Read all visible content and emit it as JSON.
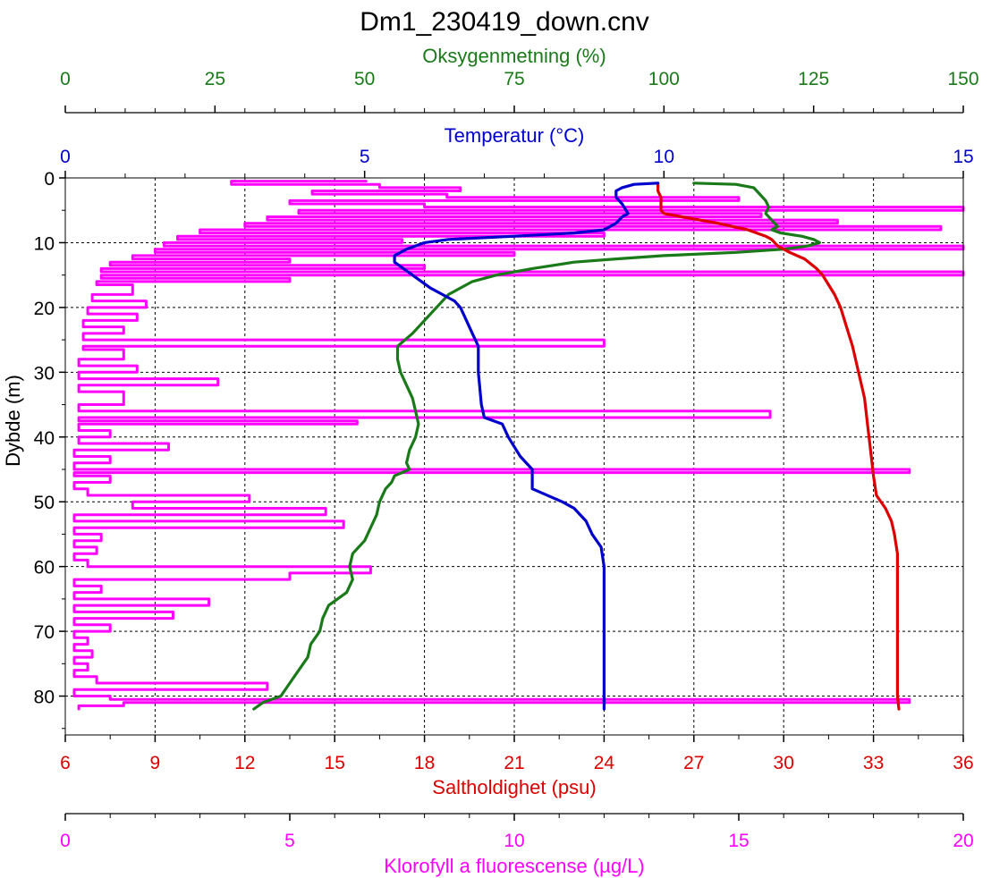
{
  "chart_data": {
    "type": "line",
    "title": "Dm1_230419_down.cnv",
    "y_axis": {
      "label": "Dybde (m)",
      "range": [
        0,
        86
      ],
      "ticks": [
        0,
        10,
        20,
        30,
        40,
        50,
        60,
        70,
        80
      ],
      "inverted": true,
      "color": "#000000"
    },
    "x_axes": [
      {
        "key": "oxygen",
        "label": "Oksygenmetning (%)",
        "position": "top",
        "color": "#1a7a1a",
        "range": [
          0,
          150
        ],
        "ticks": [
          0,
          25,
          50,
          75,
          100,
          125,
          150
        ]
      },
      {
        "key": "temperature",
        "label": "Temperatur (°C)",
        "position": "top",
        "color": "#0000cc",
        "range": [
          0,
          15
        ],
        "ticks": [
          0,
          5,
          10,
          15
        ]
      },
      {
        "key": "salinity",
        "label": "Saltholdighet (psu)",
        "position": "bottom",
        "color": "#dd0000",
        "range": [
          6,
          36
        ],
        "ticks": [
          6,
          9,
          12,
          15,
          18,
          21,
          24,
          27,
          30,
          33,
          36
        ]
      },
      {
        "key": "chlorophyll",
        "label": "Klorofyll a fluorescense (µg/L)",
        "position": "bottom",
        "color": "#ff00ff",
        "range": [
          0,
          20
        ],
        "ticks": [
          0,
          5,
          10,
          15,
          20
        ]
      }
    ],
    "grid": true,
    "series": [
      {
        "axis": "temperature",
        "color": "#0000cc",
        "points": [
          [
            0.8,
            9.9
          ],
          [
            1.0,
            9.5
          ],
          [
            1.5,
            9.3
          ],
          [
            2.0,
            9.2
          ],
          [
            3.0,
            9.2
          ],
          [
            4.0,
            9.3
          ],
          [
            5.5,
            9.4
          ],
          [
            6.0,
            9.3
          ],
          [
            7.0,
            9.2
          ],
          [
            8.0,
            9.0
          ],
          [
            8.5,
            8.5
          ],
          [
            9.0,
            7.5
          ],
          [
            9.5,
            6.4
          ],
          [
            10.0,
            6.0
          ],
          [
            11.0,
            5.7
          ],
          [
            12.0,
            5.5
          ],
          [
            13.0,
            5.5
          ],
          [
            15.0,
            5.8
          ],
          [
            17.0,
            6.1
          ],
          [
            18.0,
            6.3
          ],
          [
            19.0,
            6.5
          ],
          [
            20.0,
            6.6
          ],
          [
            22.0,
            6.7
          ],
          [
            24.0,
            6.8
          ],
          [
            26.0,
            6.9
          ],
          [
            30.0,
            6.9
          ],
          [
            35.0,
            6.95
          ],
          [
            37.0,
            7.0
          ],
          [
            38.0,
            7.3
          ],
          [
            40.0,
            7.4
          ],
          [
            43.0,
            7.6
          ],
          [
            45.0,
            7.8
          ],
          [
            47.0,
            7.8
          ],
          [
            48.0,
            7.8
          ],
          [
            50.0,
            8.3
          ],
          [
            51.0,
            8.5
          ],
          [
            53.0,
            8.7
          ],
          [
            55.0,
            8.8
          ],
          [
            57.0,
            8.95
          ],
          [
            60.0,
            9.0
          ],
          [
            70.0,
            9.0
          ],
          [
            80.0,
            9.0
          ],
          [
            82.0,
            9.0
          ]
        ]
      },
      {
        "axis": "salinity",
        "color": "#dd0000",
        "points": [
          [
            0.8,
            25.8
          ],
          [
            2.0,
            25.8
          ],
          [
            3.0,
            25.9
          ],
          [
            4.0,
            25.9
          ],
          [
            5.0,
            25.9
          ],
          [
            5.5,
            26.0
          ],
          [
            6.0,
            26.6
          ],
          [
            6.5,
            27.2
          ],
          [
            7.0,
            27.8
          ],
          [
            8.0,
            28.8
          ],
          [
            9.0,
            29.4
          ],
          [
            9.5,
            29.6
          ],
          [
            10.5,
            29.8
          ],
          [
            11.5,
            30.2
          ],
          [
            12.5,
            30.7
          ],
          [
            14.0,
            31.1
          ],
          [
            15.0,
            31.3
          ],
          [
            16.5,
            31.5
          ],
          [
            18.0,
            31.7
          ],
          [
            20.0,
            31.9
          ],
          [
            23.0,
            32.1
          ],
          [
            26.0,
            32.3
          ],
          [
            30.0,
            32.5
          ],
          [
            34.0,
            32.7
          ],
          [
            38.0,
            32.8
          ],
          [
            42.0,
            32.9
          ],
          [
            46.0,
            33.0
          ],
          [
            49.0,
            33.1
          ],
          [
            51.0,
            33.4
          ],
          [
            53.0,
            33.6
          ],
          [
            55.0,
            33.7
          ],
          [
            58.0,
            33.8
          ],
          [
            65.0,
            33.8
          ],
          [
            75.0,
            33.8
          ],
          [
            80.0,
            33.8
          ],
          [
            82.0,
            33.85
          ]
        ]
      },
      {
        "axis": "oxygen",
        "color": "#1a7a1a",
        "points": [
          [
            0.8,
            105
          ],
          [
            1.0,
            112
          ],
          [
            1.5,
            115
          ],
          [
            2.5,
            116
          ],
          [
            3.5,
            117
          ],
          [
            4.5,
            117.5
          ],
          [
            5.5,
            117
          ],
          [
            6.5,
            118
          ],
          [
            7.5,
            119
          ],
          [
            8.0,
            118
          ],
          [
            8.5,
            119.5
          ],
          [
            9.0,
            123
          ],
          [
            9.5,
            125
          ],
          [
            10.0,
            126
          ],
          [
            10.5,
            124
          ],
          [
            11.0,
            120
          ],
          [
            11.5,
            112
          ],
          [
            12.0,
            100
          ],
          [
            12.5,
            92
          ],
          [
            13.0,
            85
          ],
          [
            14.0,
            78
          ],
          [
            15.0,
            72
          ],
          [
            16.0,
            68
          ],
          [
            18.0,
            64
          ],
          [
            20.0,
            62
          ],
          [
            22.0,
            60
          ],
          [
            24.0,
            58
          ],
          [
            26.0,
            55.5
          ],
          [
            28.0,
            55.5
          ],
          [
            30.0,
            56
          ],
          [
            32.0,
            57
          ],
          [
            34.0,
            58
          ],
          [
            36.0,
            58.5
          ],
          [
            38.0,
            59
          ],
          [
            40.0,
            58.5
          ],
          [
            42.0,
            57.5
          ],
          [
            44.0,
            57
          ],
          [
            45.0,
            57.5
          ],
          [
            46.0,
            55
          ],
          [
            47.0,
            54.5
          ],
          [
            48.0,
            53.5
          ],
          [
            50.0,
            52.5
          ],
          [
            52.0,
            52
          ],
          [
            54.0,
            51
          ],
          [
            56.0,
            50
          ],
          [
            58.0,
            48
          ],
          [
            60.0,
            47.5
          ],
          [
            62.0,
            48
          ],
          [
            64.0,
            47
          ],
          [
            66.0,
            44
          ],
          [
            68.0,
            43
          ],
          [
            70.0,
            42.5
          ],
          [
            72.0,
            41
          ],
          [
            74.0,
            40.5
          ],
          [
            76.0,
            39
          ],
          [
            78.0,
            37.5
          ],
          [
            80.0,
            36
          ],
          [
            81.0,
            33
          ],
          [
            82.0,
            31.5
          ]
        ]
      },
      {
        "axis": "chlorophyll",
        "color": "#ff00ff",
        "points": [
          [
            0.5,
            6.7
          ],
          [
            1.0,
            3.7
          ],
          [
            1.5,
            7.0
          ],
          [
            2.0,
            8.8
          ],
          [
            2.5,
            5.5
          ],
          [
            3.0,
            8.5
          ],
          [
            3.5,
            15.0
          ],
          [
            4.0,
            5.0
          ],
          [
            4.5,
            8.0
          ],
          [
            5.0,
            20.0
          ],
          [
            5.5,
            5.2
          ],
          [
            6.0,
            15.5
          ],
          [
            6.5,
            4.5
          ],
          [
            7.0,
            17.2
          ],
          [
            7.5,
            4.0
          ],
          [
            8.0,
            19.5
          ],
          [
            8.5,
            3.0
          ],
          [
            9.0,
            12.0
          ],
          [
            9.5,
            2.5
          ],
          [
            10.0,
            7.5
          ],
          [
            10.5,
            2.2
          ],
          [
            11.0,
            20.0
          ],
          [
            11.5,
            2.0
          ],
          [
            12.0,
            10.0
          ],
          [
            12.5,
            1.5
          ],
          [
            13.0,
            5.0
          ],
          [
            13.5,
            1.0
          ],
          [
            14.0,
            8.0
          ],
          [
            14.5,
            0.8
          ],
          [
            15.0,
            20.0
          ],
          [
            15.5,
            0.8
          ],
          [
            16.0,
            5.0
          ],
          [
            16.5,
            0.7
          ],
          [
            18.0,
            1.5
          ],
          [
            19.0,
            0.6
          ],
          [
            20.0,
            1.8
          ],
          [
            21.0,
            0.5
          ],
          [
            22.0,
            1.6
          ],
          [
            23.0,
            0.4
          ],
          [
            24.0,
            1.3
          ],
          [
            25.0,
            0.4
          ],
          [
            26.0,
            12.0
          ],
          [
            26.5,
            0.4
          ],
          [
            28.0,
            1.3
          ],
          [
            29.0,
            0.3
          ],
          [
            30.0,
            1.6
          ],
          [
            31.0,
            0.3
          ],
          [
            32.0,
            3.4
          ],
          [
            33.0,
            0.3
          ],
          [
            35.0,
            1.3
          ],
          [
            36.0,
            0.3
          ],
          [
            37.0,
            15.7
          ],
          [
            37.5,
            0.3
          ],
          [
            38.0,
            6.5
          ],
          [
            39.0,
            0.3
          ],
          [
            40.0,
            1.0
          ],
          [
            41.0,
            0.3
          ],
          [
            42.0,
            2.3
          ],
          [
            43.0,
            0.2
          ],
          [
            44.0,
            1.0
          ],
          [
            45.0,
            0.2
          ],
          [
            45.5,
            18.8
          ],
          [
            46.0,
            0.2
          ],
          [
            47.0,
            1.0
          ],
          [
            48.0,
            0.2
          ],
          [
            49.0,
            0.5
          ],
          [
            50.0,
            4.1
          ],
          [
            51.0,
            1.5
          ],
          [
            52.0,
            5.8
          ],
          [
            53.0,
            0.2
          ],
          [
            54.0,
            6.2
          ],
          [
            55.0,
            0.2
          ],
          [
            56.0,
            0.8
          ],
          [
            57.0,
            0.2
          ],
          [
            58.0,
            0.7
          ],
          [
            59.0,
            0.2
          ],
          [
            60.0,
            0.5
          ],
          [
            61.0,
            6.8
          ],
          [
            62.0,
            5.0
          ],
          [
            63.0,
            0.2
          ],
          [
            64.0,
            0.8
          ],
          [
            65.0,
            0.2
          ],
          [
            66.0,
            3.2
          ],
          [
            67.0,
            0.2
          ],
          [
            68.0,
            2.4
          ],
          [
            69.0,
            0.2
          ],
          [
            70.0,
            1.0
          ],
          [
            71.0,
            0.2
          ],
          [
            72.0,
            0.5
          ],
          [
            73.0,
            0.2
          ],
          [
            74.0,
            0.6
          ],
          [
            75.0,
            0.2
          ],
          [
            76.0,
            0.5
          ],
          [
            77.0,
            0.2
          ],
          [
            78.0,
            0.7
          ],
          [
            79.0,
            4.5
          ],
          [
            80.0,
            0.2
          ],
          [
            80.5,
            1.0
          ],
          [
            81.0,
            18.8
          ],
          [
            81.5,
            1.3
          ],
          [
            82.0,
            0.3
          ]
        ]
      }
    ]
  }
}
